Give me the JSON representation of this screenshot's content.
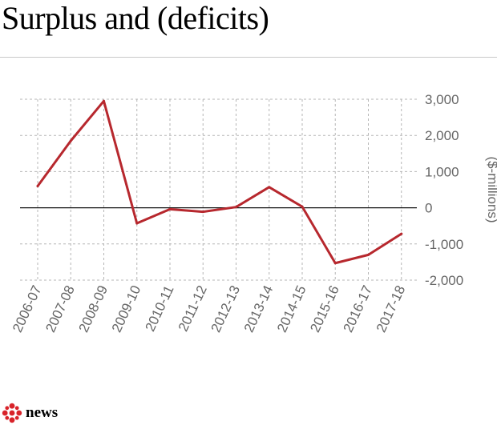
{
  "title": "Surplus and (deficits)",
  "chart_data": {
    "type": "line",
    "categories": [
      "2006-07",
      "2007-08",
      "2008-09",
      "2009-10",
      "2010-11",
      "2011-12",
      "2012-13",
      "2013-14",
      "2014-15",
      "2015-16",
      "2016-17",
      "2017-18"
    ],
    "series": [
      {
        "values": [
          600,
          1850,
          2950,
          -430,
          -40,
          -110,
          20,
          570,
          30,
          -1530,
          -1300,
          -720
        ]
      }
    ],
    "ylabel": "($-millions)",
    "ylim": [
      -2000,
      3000
    ],
    "yticks": [
      3000,
      2000,
      1000,
      0,
      -1000,
      -2000
    ],
    "ytick_labels": [
      "3,000",
      "2,000",
      "1,000",
      "0",
      "-1,000",
      "-2,000"
    ],
    "grid": true,
    "line_color": "#b7282e"
  },
  "footer": {
    "brand": "news"
  }
}
